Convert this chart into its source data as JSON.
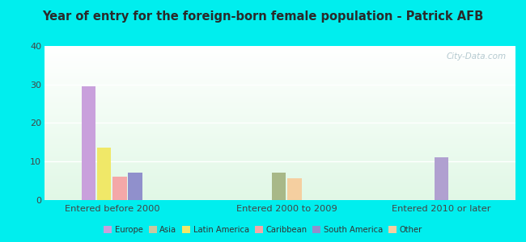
{
  "title": "Year of entry for the foreign-born female population - Patrick AFB",
  "groups": [
    "Entered before 2000",
    "Entered 2000 to 2009",
    "Entered 2010 or later"
  ],
  "bar_values": {
    "Entered before 2000": {
      "Europe": 29.5,
      "Latin America": 13.5,
      "Caribbean": 6,
      "South America": 7
    },
    "Entered 2000 to 2009": {
      "Latin America_2": 7,
      "Other": 5.5
    },
    "Entered 2010 or later": {
      "South America_2": 11
    }
  },
  "colors": {
    "Europe": "#c9a0dc",
    "Latin America": "#f0e868",
    "Caribbean": "#f4a8a8",
    "South America": "#9090cc",
    "Latin America_2": "#a8b888",
    "Other": "#f5cfa0",
    "South America_2": "#b0a0d0"
  },
  "legend": {
    "Europe": "#c9a0dc",
    "Asia": "#c8c8a0",
    "Latin America": "#f0e868",
    "Caribbean": "#f4a8a8",
    "South America": "#9090cc",
    "Other": "#f5cfa0"
  },
  "ylim": [
    0,
    40
  ],
  "yticks": [
    0,
    10,
    20,
    30,
    40
  ],
  "background_color": "#00eeee",
  "watermark": "City-Data.com",
  "title_color": "#2a2a2a",
  "group_centers": [
    0.45,
    1.75,
    2.9
  ],
  "bar_width": 0.115
}
